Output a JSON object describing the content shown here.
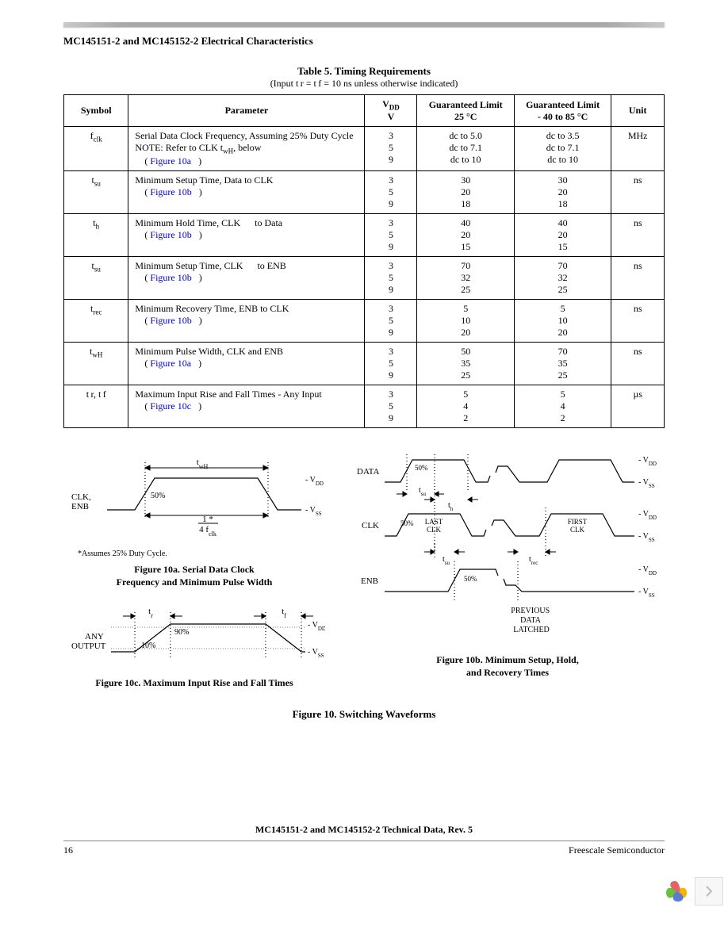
{
  "header": {
    "section_title": "MC145151-2 and MC145152-2 Electrical Characteristics",
    "table_title": "Table 5. Timing Requirements",
    "table_subtitle": "(Input t r = t f = 10 ns unless otherwise indicated)"
  },
  "table": {
    "columns": {
      "symbol": "Symbol",
      "parameter": "Parameter",
      "vdd": "V",
      "vdd_sub": "DD",
      "vdd_unit": "V",
      "g25": "Guaranteed Limit",
      "g25_sub": "25 °C",
      "g85": "Guaranteed Limit",
      "g85_sub": "- 40 to 85 °C",
      "unit": "Unit"
    },
    "rows": [
      {
        "symbol": "f",
        "symbol_sub": "clk",
        "param_line1": "Serial Data Clock Frequency, Assuming 25% Duty Cycle",
        "param_line2_pre": "NOTE: Refer to CLK t",
        "param_line2_sub": "wH",
        "param_line2_post": ", below",
        "link": "Figure 10a",
        "vdd": [
          "3",
          "5",
          "9"
        ],
        "g25": [
          "dc to 5.0",
          "dc to 7.1",
          "dc to 10"
        ],
        "g85": [
          "dc to 3.5",
          "dc to 7.1",
          "dc to 10"
        ],
        "unit": "MHz"
      },
      {
        "symbol": "t",
        "symbol_sub": "su",
        "param_line1": "Minimum Setup Time, Data to CLK",
        "link": "Figure 10b",
        "vdd": [
          "3",
          "5",
          "9"
        ],
        "g25": [
          "30",
          "20",
          "18"
        ],
        "g85": [
          "30",
          "20",
          "18"
        ],
        "unit": "ns"
      },
      {
        "symbol": "t",
        "symbol_sub": "h",
        "param_line1": "Minimum Hold Time, CLK   to Data",
        "link": "Figure 10b",
        "vdd": [
          "3",
          "5",
          "9"
        ],
        "g25": [
          "40",
          "20",
          "15"
        ],
        "g85": [
          "40",
          "20",
          "15"
        ],
        "unit": "ns"
      },
      {
        "symbol": "t",
        "symbol_sub": "su",
        "param_line1": "Minimum Setup Time, CLK   to ENB",
        "link": "Figure 10b",
        "vdd": [
          "3",
          "5",
          "9"
        ],
        "g25": [
          "70",
          "32",
          "25"
        ],
        "g85": [
          "70",
          "32",
          "25"
        ],
        "unit": "ns"
      },
      {
        "symbol": "t",
        "symbol_sub": "rec",
        "param_line1": "Minimum Recovery Time, ENB to CLK",
        "link": "Figure 10b",
        "vdd": [
          "3",
          "5",
          "9"
        ],
        "g25": [
          "5",
          "10",
          "20"
        ],
        "g85": [
          "5",
          "10",
          "20"
        ],
        "unit": "ns"
      },
      {
        "symbol": "t",
        "symbol_sub": "wH",
        "param_line1": "Minimum Pulse Width, CLK and ENB",
        "link": "Figure 10a",
        "vdd": [
          "3",
          "5",
          "9"
        ],
        "g25": [
          "50",
          "35",
          "25"
        ],
        "g85": [
          "70",
          "35",
          "25"
        ],
        "unit": "ns"
      },
      {
        "symbol_full": "t r, t f",
        "param_line1": "Maximum Input Rise and Fall Times - Any Input",
        "link": "Figure 10c",
        "vdd": [
          "3",
          "5",
          "9"
        ],
        "g25": [
          "5",
          "4",
          "2"
        ],
        "g85": [
          "5",
          "4",
          "2"
        ],
        "unit": "µs"
      }
    ]
  },
  "diagrams": {
    "fig10a": {
      "labels": {
        "clk_enb": "CLK,\nENB",
        "vdd": "- V",
        "vdd_sub": "DD",
        "vss": "- V",
        "vss_sub": "SS",
        "fifty": "50%",
        "twh": "t",
        "twh_sub": "wH",
        "frac_num": "1 *",
        "frac_den": "4 f",
        "frac_den_sub": "clk"
      },
      "note": "*Assumes 25% Duty Cycle.",
      "caption_l1": "Figure 10a. Serial Data Clock",
      "caption_l2": "Frequency and Minimum Pulse Width"
    },
    "fig10b": {
      "labels": {
        "data": "DATA",
        "clk": "CLK",
        "enb": "ENB",
        "vdd": "- V",
        "vdd_sub": "DD",
        "vss": "- V",
        "vss_sub": "SS",
        "fifty": "50%",
        "tsu": "t",
        "tsu_sub": "su",
        "th": "t",
        "th_sub": "h",
        "trec": "t",
        "trec_sub": "rec",
        "last_clk_l1": "LAST",
        "last_clk_l2": "CLK",
        "first_clk_l1": "FIRST",
        "first_clk_l2": "CLK",
        "prev": "PREVIOUS",
        "data_lab": "DATA",
        "latched": "LATCHED"
      },
      "caption_l1": "Figure 10b. Minimum Setup, Hold,",
      "caption_l2": "and Recovery Times"
    },
    "fig10c": {
      "labels": {
        "any_out_l1": "ANY",
        "any_out_l2": "OUTPUT",
        "ninety": "90%",
        "ten": "10%",
        "tr": "t",
        "tr_sub": "r",
        "tf": "t",
        "tf_sub": "f",
        "vdd": "- V",
        "vdd_sub": "DD",
        "vss": "- V",
        "vss_sub": "SS"
      },
      "caption": "Figure 10c. Maximum Input Rise and Fall Times"
    },
    "main_caption": "Figure 10. Switching Waveforms"
  },
  "footer": {
    "center": "MC145151-2 and MC145152-2 Technical Data, Rev. 5",
    "page": "16",
    "right": "Freescale Semiconductor"
  },
  "colors": {
    "link": "#0000cc",
    "rule_grey": "#a8a8a8",
    "stroke": "#000000"
  }
}
